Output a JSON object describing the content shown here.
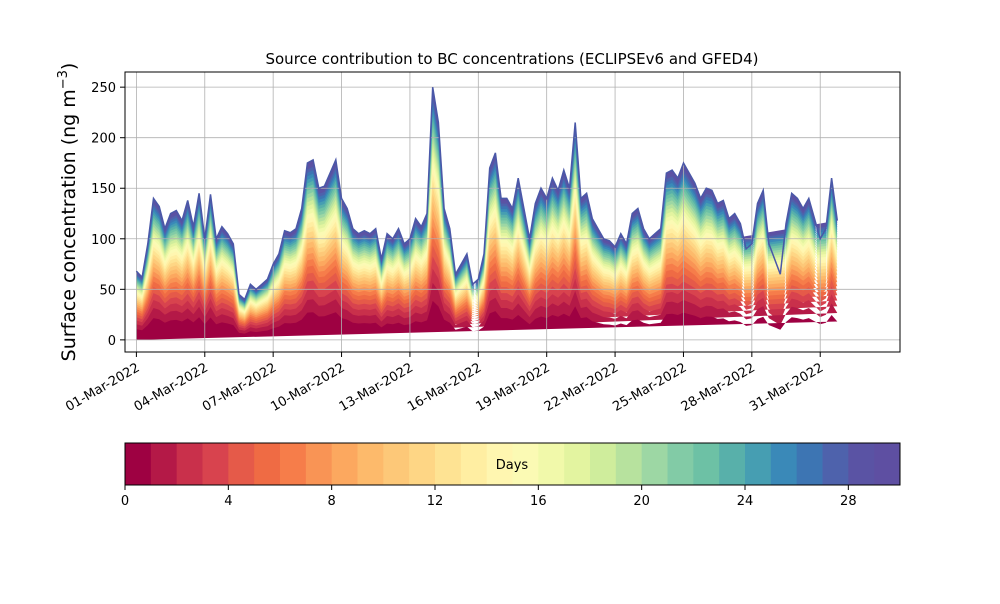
{
  "chart_data": {
    "type": "area",
    "title": "Source contribution to BC concentrations (ECLIPSEv6 and GFED4)",
    "ylabel_text": "Surface concentration (ng m",
    "ylabel_sup": "−3",
    "ylabel_close": ")",
    "xlabel": "",
    "ylim": [
      -12,
      265
    ],
    "xlim_days": [
      -0.5,
      33.5
    ],
    "yticks": [
      "0",
      "50",
      "100",
      "150",
      "200",
      "250"
    ],
    "ytick_values": [
      0,
      50,
      100,
      150,
      200,
      250
    ],
    "xtick_labels": [
      "01-Mar-2022",
      "04-Mar-2022",
      "07-Mar-2022",
      "10-Mar-2022",
      "13-Mar-2022",
      "16-Mar-2022",
      "19-Mar-2022",
      "22-Mar-2022",
      "25-Mar-2022",
      "28-Mar-2022",
      "31-Mar-2022"
    ],
    "grid": true,
    "series_description": "Stacked contributions by emission age (days 0–30)",
    "total": {
      "dates_day_offset": [
        0,
        0.25,
        0.5,
        0.75,
        1.0,
        1.25,
        1.5,
        1.75,
        2.0,
        2.25,
        2.5,
        2.75,
        3.0,
        3.25,
        3.5,
        3.75,
        4.0,
        4.25,
        4.5,
        4.75,
        5.0,
        5.25,
        5.5,
        5.75,
        6.0,
        6.25,
        6.5,
        6.75,
        7.0,
        7.25,
        7.5,
        7.75,
        8.0,
        8.25,
        8.5,
        8.75,
        9.0,
        9.25,
        9.5,
        9.75,
        10.0,
        10.25,
        10.5,
        10.75,
        11.0,
        11.25,
        11.5,
        11.75,
        12.0,
        12.25,
        12.5,
        12.75,
        13.0,
        13.25,
        13.5,
        13.75,
        14.0,
        14.25,
        14.5,
        14.75,
        15.0,
        15.25,
        15.5,
        15.75,
        16.0,
        16.25,
        16.5,
        16.75,
        17.0,
        17.25,
        17.5,
        17.75,
        18.0,
        18.25,
        18.5,
        18.75,
        19.0,
        19.25,
        19.5,
        19.75,
        20.0,
        20.25,
        20.5,
        20.75,
        21.0,
        21.25,
        21.5,
        21.75,
        22.0,
        22.25,
        22.5,
        22.75,
        23.0,
        23.25,
        23.5,
        23.75,
        24.0,
        24.25,
        24.5,
        24.75,
        25.0,
        25.25,
        25.5,
        25.75,
        26.0,
        26.25,
        26.5,
        26.75,
        27.0,
        27.25,
        27.5,
        27.75,
        28.0,
        28.25,
        28.5,
        28.75,
        29.0,
        29.25,
        29.5,
        29.75,
        30.0,
        30.25,
        30.5,
        30.75,
        31.0,
        31.25
      ],
      "values": [
        68,
        62,
        95,
        140,
        132,
        110,
        125,
        128,
        118,
        138,
        112,
        145,
        100,
        144,
        100,
        112,
        105,
        95,
        45,
        40,
        55,
        50,
        55,
        60,
        75,
        85,
        108,
        106,
        110,
        130,
        175,
        178,
        150,
        152,
        165,
        178,
        140,
        130,
        110,
        105,
        108,
        105,
        110,
        80,
        105,
        100,
        110,
        95,
        100,
        120,
        112,
        125,
        250,
        215,
        130,
        110,
        65,
        75,
        85,
        55,
        60,
        85,
        170,
        185,
        140,
        140,
        130,
        160,
        130,
        100,
        135,
        150,
        140,
        160,
        148,
        168,
        150,
        215,
        140,
        145,
        120,
        110,
        100,
        98,
        92,
        105,
        95,
        125,
        130,
        110,
        100,
        105,
        110,
        165,
        168,
        160,
        175,
        165,
        155,
        140,
        150,
        148,
        135,
        138,
        120,
        125,
        115,
        90,
        95,
        135,
        148,
        95,
        80,
        65,
        115,
        145,
        140,
        130,
        140,
        120,
        100,
        110,
        160,
        118
      ]
    },
    "colorbar": {
      "label": "Days",
      "ticks": [
        "0",
        "4",
        "8",
        "12",
        "16",
        "20",
        "24",
        "28"
      ],
      "tick_values": [
        0,
        4,
        8,
        12,
        16,
        20,
        24,
        28
      ],
      "range": [
        0,
        30
      ],
      "colors": [
        "#9e0142",
        "#b41947",
        "#c9304b",
        "#d8434e",
        "#e55a49",
        "#ef6b44",
        "#f67d4a",
        "#f99455",
        "#fca85f",
        "#fdba6b",
        "#fdc878",
        "#fed685",
        "#fee393",
        "#ffeea2",
        "#fff6b0",
        "#fbfab4",
        "#f1f9aa",
        "#e3f4a0",
        "#cfed9c",
        "#b7e29e",
        "#9dd7a4",
        "#82cba6",
        "#6dc1a5",
        "#58b0aa",
        "#469eb2",
        "#3a89b8",
        "#3d75b3",
        "#4e62ac",
        "#5a53a4",
        "#5e4fa2"
      ]
    }
  }
}
